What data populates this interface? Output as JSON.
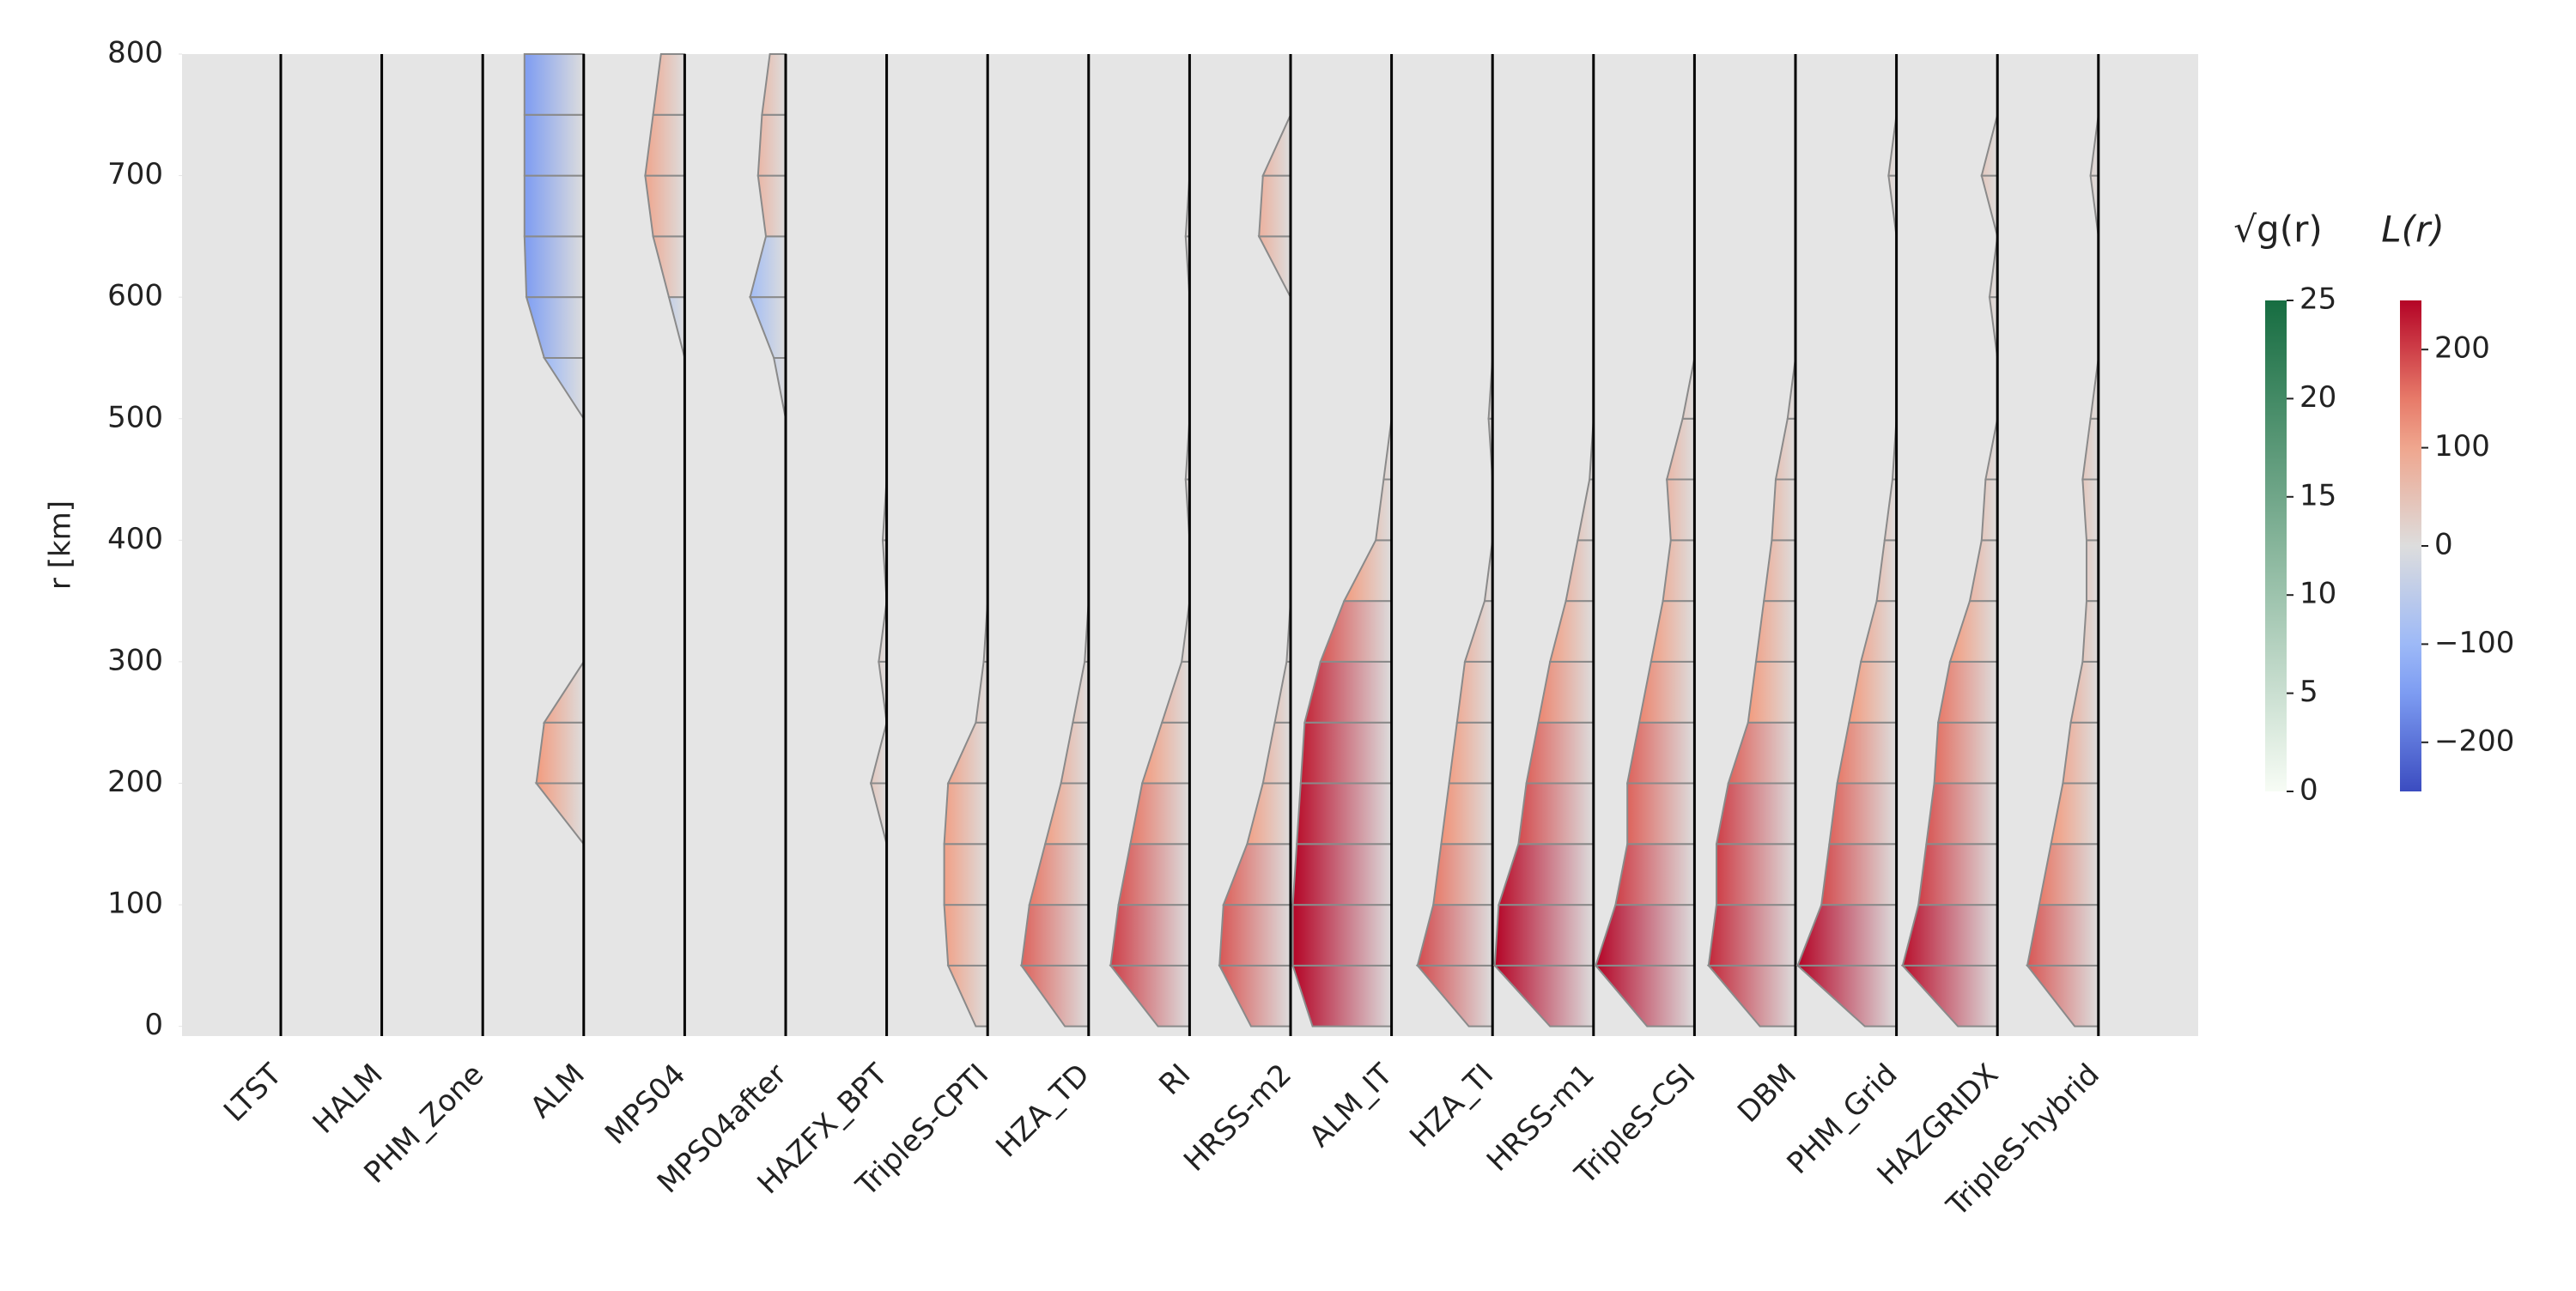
{
  "chart_data": {
    "type": "violin",
    "ylabel": "r [km]",
    "categories": [
      "LTST",
      "HALM",
      "PHM_Zone",
      "ALM",
      "MPS04",
      "MPS04after",
      "HAZFX_BPT",
      "TripleS-CPTI",
      "HZA_TD",
      "RI",
      "HRSS-m2",
      "ALM_IT",
      "HZA_TI",
      "HRSS-m1",
      "TripleS-CSI",
      "DBM",
      "PHM_Grid",
      "HAZGRIDX",
      "TripleS-hybrid"
    ],
    "r": [
      0,
      50,
      100,
      150,
      200,
      250,
      300,
      350,
      400,
      450,
      500,
      550,
      600,
      650,
      700,
      750,
      800
    ],
    "values": [
      [
        0,
        0,
        0,
        0,
        0,
        0,
        0,
        0,
        0,
        0,
        0,
        0,
        0,
        0,
        0,
        0,
        0
      ],
      [
        0,
        0,
        0,
        0,
        0,
        0,
        0,
        0,
        0,
        0,
        0,
        0,
        0,
        0,
        0,
        0,
        0
      ],
      [
        0,
        0,
        0,
        0,
        0,
        0,
        0,
        0,
        0,
        0,
        0,
        0,
        0,
        0,
        0,
        0,
        0
      ],
      [
        0,
        0,
        0,
        0,
        120,
        100,
        0,
        0,
        0,
        0,
        0,
        -100,
        -145,
        -150,
        -150,
        -150,
        -150
      ],
      [
        0,
        0,
        0,
        0,
        0,
        0,
        0,
        0,
        0,
        0,
        0,
        0,
        -40,
        80,
        100,
        80,
        60
      ],
      [
        0,
        0,
        0,
        0,
        0,
        0,
        0,
        0,
        0,
        0,
        0,
        -30,
        -90,
        50,
        70,
        60,
        40
      ],
      [
        0,
        0,
        0,
        0,
        40,
        0,
        20,
        0,
        10,
        0,
        0,
        0,
        0,
        0,
        0,
        0,
        0
      ],
      [
        30,
        100,
        110,
        110,
        100,
        30,
        10,
        0,
        0,
        0,
        0,
        0,
        0,
        0,
        0,
        0,
        0
      ],
      [
        60,
        170,
        150,
        110,
        70,
        40,
        10,
        0,
        0,
        0,
        0,
        0,
        0,
        0,
        0,
        0,
        0
      ],
      [
        80,
        200,
        180,
        150,
        120,
        70,
        20,
        0,
        0,
        10,
        0,
        0,
        0,
        10,
        0,
        0,
        0
      ],
      [
        100,
        180,
        170,
        110,
        70,
        40,
        10,
        0,
        0,
        0,
        0,
        0,
        0,
        80,
        70,
        0,
        0
      ],
      [
        200,
        250,
        250,
        240,
        230,
        220,
        180,
        120,
        40,
        20,
        0,
        0,
        0,
        0,
        0,
        0,
        0
      ],
      [
        60,
        190,
        150,
        130,
        110,
        90,
        70,
        20,
        0,
        0,
        10,
        0,
        0,
        0,
        0,
        0,
        0
      ],
      [
        110,
        250,
        240,
        190,
        170,
        140,
        110,
        70,
        40,
        10,
        0,
        0,
        0,
        0,
        0,
        0,
        0
      ],
      [
        120,
        250,
        200,
        170,
        170,
        140,
        110,
        80,
        60,
        70,
        30,
        0,
        0,
        0,
        0,
        0,
        0
      ],
      [
        90,
        220,
        200,
        200,
        170,
        120,
        100,
        80,
        60,
        50,
        20,
        0,
        0,
        0,
        0,
        0,
        0
      ],
      [
        80,
        250,
        190,
        170,
        150,
        120,
        90,
        50,
        30,
        10,
        0,
        0,
        0,
        0,
        20,
        0,
        0
      ],
      [
        100,
        240,
        200,
        180,
        160,
        150,
        120,
        70,
        40,
        30,
        0,
        0,
        20,
        0,
        40,
        0,
        0
      ],
      [
        60,
        180,
        150,
        120,
        90,
        70,
        40,
        30,
        30,
        40,
        20,
        0,
        0,
        0,
        20,
        0,
        0
      ]
    ],
    "ylim": [
      -8,
      800
    ],
    "yticks": [
      0,
      100,
      200,
      300,
      400,
      500,
      600,
      700,
      800
    ],
    "clim": [
      -250,
      250
    ],
    "colorbar_title": "L(r)",
    "colorbar_ticks": [
      {
        "value": -200,
        "label": "−200"
      },
      {
        "value": -100,
        "label": "−100"
      },
      0,
      100,
      200
    ],
    "g_colorbar_title": "√g(r)",
    "g_clim": [
      0,
      25
    ],
    "g_colorbar_ticks": [
      0,
      5,
      10,
      15,
      20,
      25
    ]
  }
}
